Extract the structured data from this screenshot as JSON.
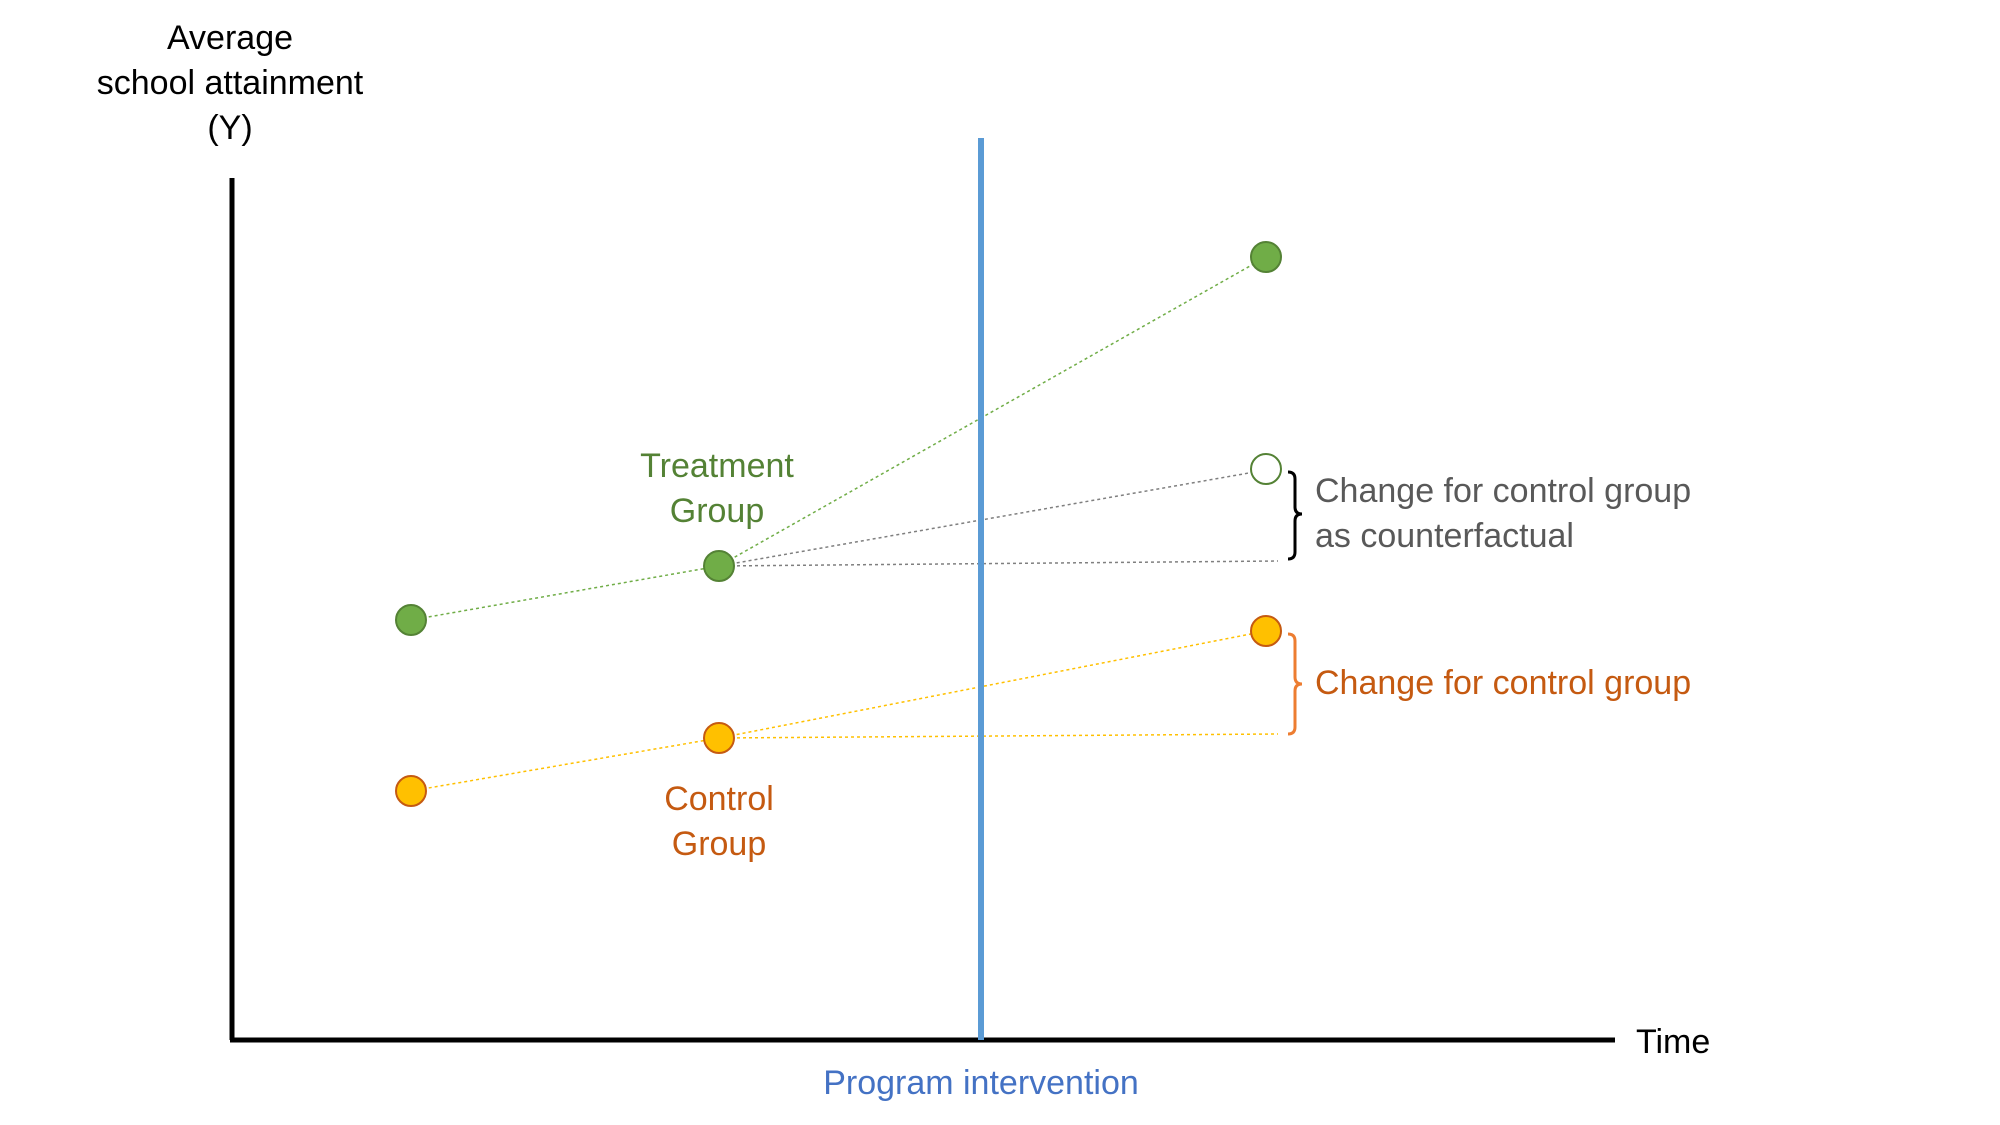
{
  "colors": {
    "axis": "#000000",
    "intervention": "#5b9bd5",
    "intervention_text": "#4472c4",
    "treatment": "#70ad47",
    "treatment_stroke": "#548235",
    "treatment_text": "#548235",
    "control": "#ffc000",
    "control_stroke": "#c55a11",
    "control_text": "#c55a11",
    "counterfactual_text": "#595959",
    "counterfactual_line": "#7f7f7f"
  },
  "axes": {
    "y_label_lines": [
      "Average",
      "school attainment",
      "(Y)"
    ],
    "x_label": "Time"
  },
  "intervention": {
    "label": "Program intervention"
  },
  "groups": {
    "treatment": {
      "label_lines": [
        "Treatment",
        "Group"
      ]
    },
    "control": {
      "label_lines": [
        "Control",
        "Group"
      ]
    }
  },
  "annotations": {
    "counterfactual_lines": [
      "Change for control group",
      "as counterfactual"
    ],
    "control_change": "Change for control group"
  }
}
